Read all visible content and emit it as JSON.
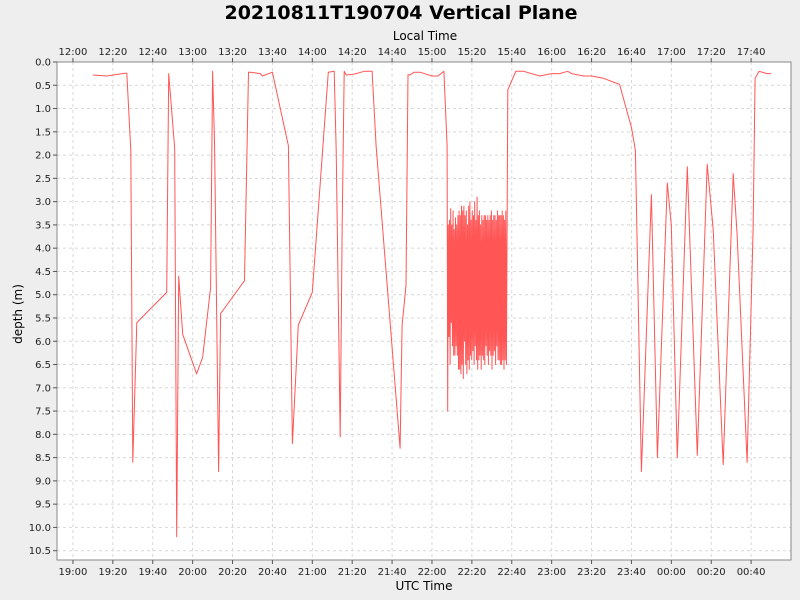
{
  "chart_data": {
    "type": "line",
    "title": "20210811T190704 Vertical Plane",
    "xlabel": "UTC Time",
    "x2label": "Local Time",
    "ylabel": "depth (m)",
    "y_inverted": true,
    "ylim": [
      0.0,
      10.7
    ],
    "xlim": [
      "18:52",
      "01:00"
    ],
    "grid": true,
    "x_ticks_utc": [
      "19:00",
      "19:20",
      "19:40",
      "20:00",
      "20:20",
      "20:40",
      "21:00",
      "21:20",
      "21:40",
      "22:00",
      "22:20",
      "22:40",
      "23:00",
      "23:20",
      "23:40",
      "00:00",
      "00:20",
      "00:40"
    ],
    "x_ticks_local": [
      "12:00",
      "12:20",
      "12:40",
      "13:00",
      "13:20",
      "13:40",
      "14:00",
      "14:20",
      "14:40",
      "15:00",
      "15:20",
      "15:40",
      "16:00",
      "16:20",
      "16:40",
      "17:00",
      "17:20",
      "17:40"
    ],
    "y_ticks": [
      "0.0",
      "0.5",
      "1.0",
      "1.5",
      "2.0",
      "2.5",
      "3.0",
      "3.5",
      "4.0",
      "4.5",
      "5.0",
      "5.5",
      "6.0",
      "6.5",
      "7.0",
      "7.5",
      "8.0",
      "8.5",
      "9.0",
      "9.5",
      "10.0",
      "10.5"
    ],
    "series": [
      {
        "color": "#ff5555",
        "x": [
          "19:10",
          "19:17",
          "19:26",
          "19:27",
          "19:29",
          "19:30",
          "19:32",
          "19:47",
          "19:48",
          "19:51",
          "19:52",
          "19:53",
          "19:55",
          "20:02",
          "20:05",
          "20:09",
          "20:10",
          "20:11",
          "20:13",
          "20:14",
          "20:15",
          "20:26",
          "20:28",
          "20:29",
          "20:34",
          "20:35",
          "20:40",
          "20:48",
          "20:50",
          "20:53",
          "21:00",
          "21:08",
          "21:11",
          "21:12",
          "21:14",
          "21:15",
          "21:16",
          "21:17",
          "21:21",
          "21:26",
          "21:30",
          "21:32",
          "21:44",
          "21:45",
          "21:47",
          "21:48",
          "21:49",
          "21:51",
          "21:54",
          "22:00",
          "22:03",
          "22:06",
          "22:07.6",
          "22:07.9",
          "22:08.2",
          "22:08.5",
          "22:08.8",
          "22:09.1",
          "22:09.4",
          "22:09.7",
          "22:10.0",
          "22:10.3",
          "22:10.6",
          "22:10.9",
          "22:11.2",
          "22:11.5",
          "22:11.8",
          "22:12.1",
          "22:12.4",
          "22:12.7",
          "22:13.0",
          "22:13.3",
          "22:13.6",
          "22:13.9",
          "22:14.2",
          "22:14.5",
          "22:14.8",
          "22:15.1",
          "22:15.4",
          "22:15.7",
          "22:16.0",
          "22:16.3",
          "22:16.6",
          "22:16.9",
          "22:17.2",
          "22:17.5",
          "22:17.8",
          "22:18.1",
          "22:18.4",
          "22:18.7",
          "22:19.0",
          "22:19.3",
          "22:19.6",
          "22:19.9",
          "22:20.2",
          "22:20.5",
          "22:20.8",
          "22:21.1",
          "22:21.4",
          "22:21.7",
          "22:22.0",
          "22:22.3",
          "22:22.6",
          "22:22.9",
          "22:23.2",
          "22:23.5",
          "22:23.8",
          "22:24.1",
          "22:24.4",
          "22:24.7",
          "22:25.0",
          "22:25.3",
          "22:25.6",
          "22:25.9",
          "22:26.2",
          "22:26.5",
          "22:26.8",
          "22:27.1",
          "22:27.4",
          "22:27.7",
          "22:28.0",
          "22:28.3",
          "22:28.6",
          "22:28.9",
          "22:29.2",
          "22:29.5",
          "22:29.8",
          "22:30.1",
          "22:30.4",
          "22:30.7",
          "22:31.0",
          "22:31.3",
          "22:31.6",
          "22:31.9",
          "22:32.2",
          "22:32.5",
          "22:32.8",
          "22:33.1",
          "22:33.4",
          "22:33.7",
          "22:34.0",
          "22:34.3",
          "22:34.6",
          "22:34.9",
          "22:35.2",
          "22:35.5",
          "22:35.8",
          "22:36.1",
          "22:36.4",
          "22:36.7",
          "22:37.0",
          "22:37.3",
          "22:38",
          "22:42",
          "22:46",
          "22:54",
          "23:00",
          "23:04",
          "23:08",
          "23:10",
          "23:16",
          "23:20",
          "23:26",
          "23:32",
          "23:34",
          "23:40",
          "23:42",
          "23:45",
          "23:50",
          "23:53",
          "23:58",
          "24:00",
          "24:03",
          "24:08",
          "24:13",
          "24:18",
          "24:21",
          "24:26",
          "24:31",
          "24:33",
          "24:38",
          "24:41",
          "24:42",
          "24:44",
          "24:48",
          "24:50"
        ],
        "y": [
          0.28,
          0.3,
          0.24,
          0.24,
          1.9,
          8.6,
          5.6,
          4.95,
          0.25,
          1.85,
          10.2,
          4.6,
          5.85,
          6.7,
          6.35,
          4.85,
          0.2,
          1.8,
          8.8,
          5.4,
          5.35,
          4.7,
          0.22,
          0.22,
          0.25,
          0.3,
          0.22,
          1.8,
          8.2,
          5.65,
          4.95,
          0.22,
          0.2,
          1.9,
          8.05,
          3.5,
          0.2,
          0.28,
          0.26,
          0.2,
          0.2,
          1.8,
          8.3,
          5.65,
          4.8,
          0.27,
          0.28,
          0.22,
          0.22,
          0.3,
          0.3,
          0.2,
          1.8,
          7.5,
          3.5,
          5.9,
          3.4,
          6.5,
          3.15,
          5.6,
          3.5,
          6.1,
          3.2,
          6.3,
          3.6,
          6.3,
          3.35,
          6.1,
          3.5,
          6.3,
          3.3,
          6.6,
          3.2,
          6.6,
          3.3,
          6.7,
          3.1,
          6.5,
          3.2,
          6.8,
          3.1,
          6.0,
          3.3,
          6.5,
          3.2,
          6.7,
          3.5,
          6.4,
          3.1,
          6.6,
          3.0,
          6.3,
          3.4,
          6.4,
          3.2,
          6.2,
          3.3,
          6.5,
          3.0,
          6.1,
          3.4,
          6.4,
          2.9,
          6.6,
          3.3,
          6.4,
          3.2,
          6.3,
          3.5,
          6.6,
          3.3,
          6.3,
          3.4,
          6.4,
          3.3,
          6.5,
          3.3,
          6.1,
          3.4,
          6.3,
          3.3,
          6.5,
          3.4,
          6.2,
          3.3,
          6.3,
          3.2,
          6.6,
          3.4,
          6.3,
          3.3,
          6.2,
          3.3,
          6.5,
          3.4,
          6.1,
          3.2,
          6.4,
          3.3,
          6.4,
          3.3,
          6.5,
          3.3,
          6.5,
          3.2,
          6.4,
          3.3,
          6.6,
          3.4,
          6.4,
          3.2,
          6.5,
          0.6,
          0.2,
          0.2,
          0.3,
          0.25,
          0.25,
          0.2,
          0.25,
          0.3,
          0.3,
          0.35,
          0.45,
          0.48,
          1.4,
          1.9,
          8.8,
          2.85,
          8.5,
          2.6,
          3.5,
          8.5,
          2.25,
          8.45,
          2.2,
          3.6,
          8.65,
          2.4,
          3.7,
          8.6,
          3.6,
          0.35,
          0.2,
          0.25,
          0.25
        ]
      }
    ]
  }
}
